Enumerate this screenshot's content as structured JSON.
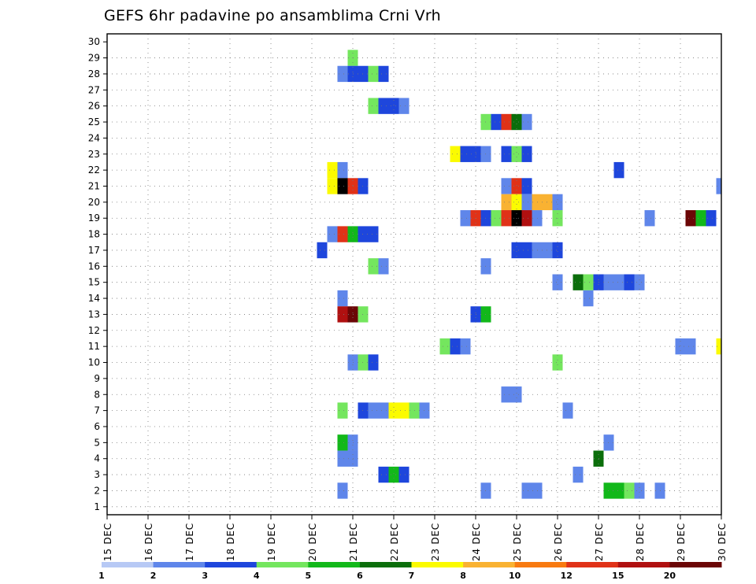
{
  "chart_data": {
    "type": "heatmap",
    "title": "GEFS 6hr padavine po ansamblima Crni Vrh",
    "y_ticks": [
      "1",
      "2",
      "3",
      "4",
      "5",
      "6",
      "7",
      "8",
      "9",
      "10",
      "11",
      "12",
      "13",
      "14",
      "15",
      "16",
      "17",
      "18",
      "19",
      "20",
      "21",
      "22",
      "23",
      "24",
      "25",
      "26",
      "27",
      "28",
      "29",
      "30"
    ],
    "ylim": [
      1,
      30
    ],
    "x_ticks": [
      "15 DEC",
      "16 DEC",
      "17 DEC",
      "18 DEC",
      "19 DEC",
      "20 DEC",
      "21 DEC",
      "22 DEC",
      "23 DEC",
      "24 DEC",
      "25 DEC",
      "26 DEC",
      "27 DEC",
      "28 DEC",
      "29 DEC",
      "30 DEC"
    ],
    "x_step": "6hr",
    "grid": true,
    "colorbar": {
      "labels": [
        "1",
        "2",
        "3",
        "4",
        "5",
        "6",
        "7",
        "8",
        "10",
        "12",
        "15",
        "20"
      ],
      "colors": [
        "#b7c9f5",
        "#5f86ea",
        "#1e46dc",
        "#74e65e",
        "#12b81a",
        "#0b6e0b",
        "#fbfb00",
        "#f9b232",
        "#f87a10",
        "#e03218",
        "#b01010",
        "#6b0606"
      ]
    },
    "cells": [
      [
        29,
        "21.00",
        3
      ],
      [
        28,
        "20.75",
        1
      ],
      [
        28,
        "21.00",
        2
      ],
      [
        28,
        "21.25",
        2
      ],
      [
        28,
        "21.50",
        3
      ],
      [
        28,
        "21.75",
        2
      ],
      [
        26,
        "21.50",
        3
      ],
      [
        26,
        "21.75",
        2
      ],
      [
        26,
        "22.00",
        2
      ],
      [
        26,
        "22.25",
        1
      ],
      [
        25,
        "24.25",
        3
      ],
      [
        25,
        "24.50",
        2
      ],
      [
        25,
        "24.75",
        9
      ],
      [
        25,
        "25.00",
        5
      ],
      [
        25,
        "25.25",
        1
      ],
      [
        23,
        "23.50",
        6
      ],
      [
        23,
        "23.75",
        2
      ],
      [
        23,
        "24.00",
        2
      ],
      [
        23,
        "24.25",
        1
      ],
      [
        23,
        "24.75",
        2
      ],
      [
        23,
        "25.00",
        3
      ],
      [
        23,
        "25.25",
        2
      ],
      [
        22,
        "20.50",
        6
      ],
      [
        22,
        "20.75",
        1
      ],
      [
        22,
        "27.50",
        2
      ],
      [
        21,
        "20.50",
        6
      ],
      [
        21,
        "20.75",
        12
      ],
      [
        21,
        "21.00",
        9
      ],
      [
        21,
        "21.25",
        2
      ],
      [
        21,
        "24.75",
        1
      ],
      [
        21,
        "25.00",
        9
      ],
      [
        21,
        "25.25",
        2
      ],
      [
        21,
        "30.00",
        1
      ],
      [
        20,
        "24.75",
        7
      ],
      [
        20,
        "25.00",
        6
      ],
      [
        20,
        "25.25",
        1
      ],
      [
        20,
        "25.50",
        7
      ],
      [
        20,
        "25.75",
        7
      ],
      [
        20,
        "26.00",
        1
      ],
      [
        19,
        "23.75",
        1
      ],
      [
        19,
        "24.00",
        9
      ],
      [
        19,
        "24.25",
        2
      ],
      [
        19,
        "24.50",
        3
      ],
      [
        19,
        "24.75",
        9
      ],
      [
        19,
        "25.00",
        12
      ],
      [
        19,
        "25.25",
        10
      ],
      [
        19,
        "25.50",
        1
      ],
      [
        19,
        "26.00",
        3
      ],
      [
        19,
        "28.25",
        1
      ],
      [
        19,
        "29.25",
        11
      ],
      [
        19,
        "29.50",
        4
      ],
      [
        19,
        "29.75",
        2
      ],
      [
        18,
        "20.50",
        1
      ],
      [
        18,
        "20.75",
        9
      ],
      [
        18,
        "21.00",
        4
      ],
      [
        18,
        "21.25",
        2
      ],
      [
        18,
        "21.50",
        2
      ],
      [
        17,
        "20.25",
        2
      ],
      [
        17,
        "25.00",
        2
      ],
      [
        17,
        "25.25",
        2
      ],
      [
        17,
        "25.50",
        1
      ],
      [
        17,
        "25.75",
        1
      ],
      [
        17,
        "26.00",
        2
      ],
      [
        16,
        "21.50",
        3
      ],
      [
        16,
        "21.75",
        1
      ],
      [
        16,
        "24.25",
        1
      ],
      [
        15,
        "26.00",
        1
      ],
      [
        15,
        "26.50",
        5
      ],
      [
        15,
        "26.75",
        3
      ],
      [
        15,
        "27.00",
        2
      ],
      [
        15,
        "27.25",
        1
      ],
      [
        15,
        "27.50",
        1
      ],
      [
        15,
        "27.75",
        2
      ],
      [
        15,
        "28.00",
        1
      ],
      [
        14,
        "20.75",
        1
      ],
      [
        14,
        "26.75",
        1
      ],
      [
        13,
        "20.75",
        10
      ],
      [
        13,
        "21.00",
        11
      ],
      [
        13,
        "21.25",
        3
      ],
      [
        13,
        "24.00",
        2
      ],
      [
        13,
        "24.25",
        4
      ],
      [
        11,
        "23.25",
        3
      ],
      [
        11,
        "23.50",
        2
      ],
      [
        11,
        "23.75",
        1
      ],
      [
        11,
        "29.00",
        1
      ],
      [
        11,
        "29.25",
        1
      ],
      [
        11,
        "30.00",
        6
      ],
      [
        10,
        "21.00",
        1
      ],
      [
        10,
        "21.25",
        3
      ],
      [
        10,
        "21.50",
        2
      ],
      [
        10,
        "26.00",
        3
      ],
      [
        8,
        "24.75",
        1
      ],
      [
        8,
        "25.00",
        1
      ],
      [
        7,
        "20.75",
        3
      ],
      [
        7,
        "21.25",
        2
      ],
      [
        7,
        "21.50",
        1
      ],
      [
        7,
        "21.75",
        1
      ],
      [
        7,
        "22.00",
        6
      ],
      [
        7,
        "22.25",
        6
      ],
      [
        7,
        "22.50",
        3
      ],
      [
        7,
        "22.75",
        1
      ],
      [
        7,
        "26.25",
        1
      ],
      [
        5,
        "20.75",
        4
      ],
      [
        5,
        "21.00",
        1
      ],
      [
        5,
        "27.25",
        1
      ],
      [
        4,
        "20.75",
        1
      ],
      [
        4,
        "21.00",
        1
      ],
      [
        4,
        "27.00",
        5
      ],
      [
        3,
        "21.75",
        2
      ],
      [
        3,
        "22.00",
        4
      ],
      [
        3,
        "22.25",
        2
      ],
      [
        3,
        "26.50",
        1
      ],
      [
        2,
        "20.75",
        1
      ],
      [
        2,
        "24.25",
        1
      ],
      [
        2,
        "25.25",
        1
      ],
      [
        2,
        "25.50",
        1
      ],
      [
        2,
        "27.25",
        4
      ],
      [
        2,
        "27.50",
        4
      ],
      [
        2,
        "27.75",
        3
      ],
      [
        2,
        "28.00",
        1
      ],
      [
        2,
        "28.50",
        1
      ]
    ]
  }
}
